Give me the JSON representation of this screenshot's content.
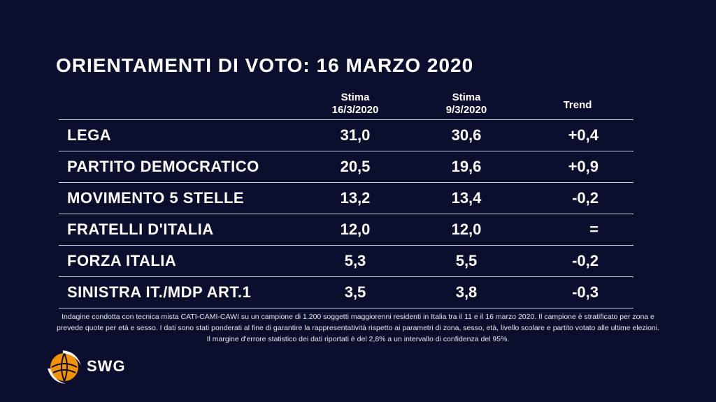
{
  "title": "ORIENTAMENTI DI VOTO: 16 MARZO 2020",
  "table": {
    "headers": {
      "col1": [
        "Stima",
        "16/3/2020"
      ],
      "col2": [
        "Stima",
        "9/3/2020"
      ],
      "col3": "Trend"
    },
    "rows": [
      {
        "party": "LEGA",
        "v1": "31,0",
        "v2": "30,6",
        "trend": "+0,4"
      },
      {
        "party": "PARTITO DEMOCRATICO",
        "v1": "20,5",
        "v2": "19,6",
        "trend": "+0,9"
      },
      {
        "party": "MOVIMENTO 5 STELLE",
        "v1": "13,2",
        "v2": "13,4",
        "trend": "-0,2"
      },
      {
        "party": "FRATELLI D'ITALIA",
        "v1": "12,0",
        "v2": "12,0",
        "trend": "="
      },
      {
        "party": "FORZA ITALIA",
        "v1": "5,3",
        "v2": "5,5",
        "trend": "-0,2"
      },
      {
        "party": "SINISTRA IT./MDP ART.1",
        "v1": "3,5",
        "v2": "3,8",
        "trend": "-0,3"
      }
    ]
  },
  "note": "Indagine condotta con tecnica mista CATI-CAMI-CAWI su un campione di 1.200 soggetti maggiorenni residenti in Italia tra il 11 e il 16 marzo 2020. Il campione è stratificato per zona e prevede quote per età e sesso. I dati sono stati ponderati al fine di garantire la rappresentatività rispetto ai parametri di zona, sesso, età, livello scolare e partito votato alle ultime elezioni. Il margine d'errore statistico dei dati riportati è del 2,8% a un intervallo di confidenza del 95%.",
  "logo": {
    "text": "SWG",
    "icon": "swg-globe-icon",
    "accent": "#f39200"
  },
  "colors": {
    "background": "#0c0e2e",
    "text": "#ffffff",
    "divider": "#cfd0da"
  }
}
